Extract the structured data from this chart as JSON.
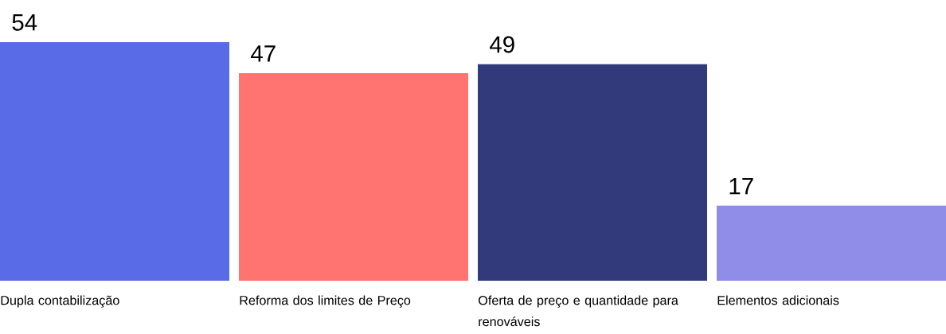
{
  "chart_data": {
    "type": "bar",
    "categories": [
      "Dupla contabilização",
      "Reforma dos limites de Preço",
      "Oferta de preço e quantidade para renováveis",
      "Elementos adicionais"
    ],
    "values": [
      54,
      47,
      49,
      17
    ],
    "colors": [
      "#5a6be8",
      "#ff7370",
      "#333a7b",
      "#8f8de8"
    ],
    "data_labels": true
  }
}
